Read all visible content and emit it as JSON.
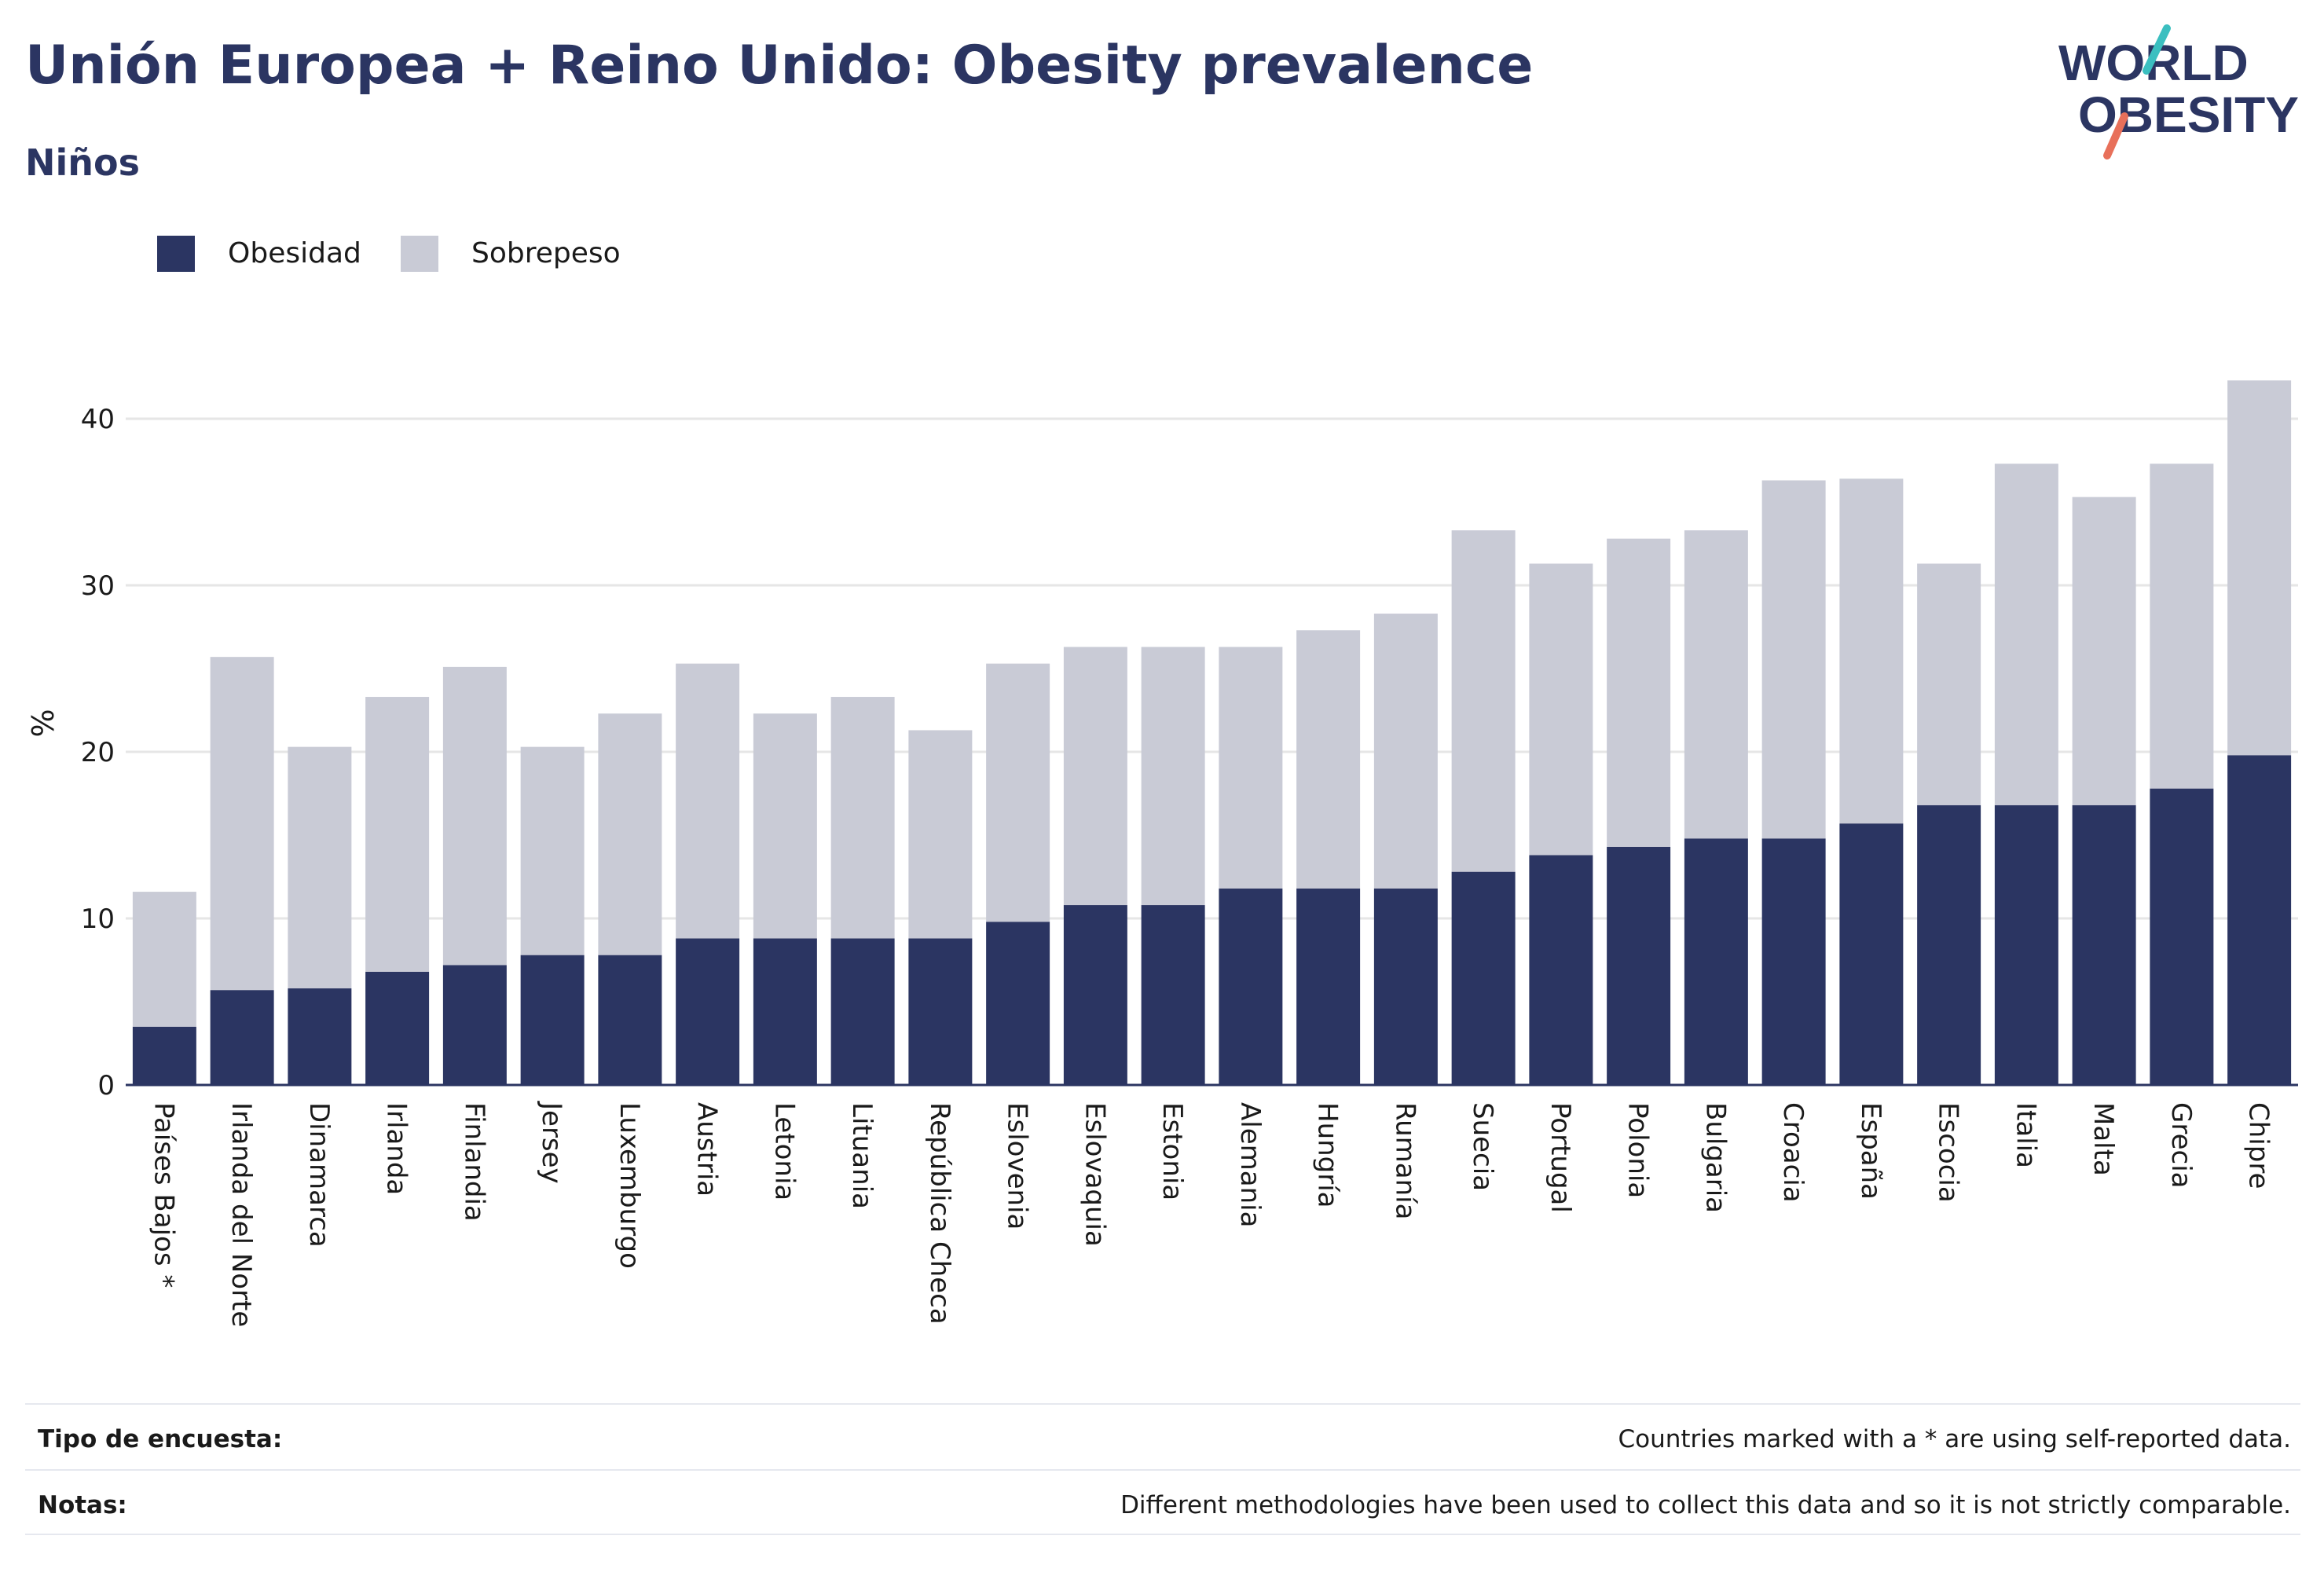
{
  "title": "Unión Europea + Reino Unido: Obesity prevalence",
  "subtitle": "Niños",
  "logo": {
    "line1": "WORLD",
    "line2": "OBESITY",
    "accent_colors": [
      "#3bbfc0",
      "#e8705a"
    ],
    "text_color": "#2b3562"
  },
  "colors": {
    "obesidad": "#2b3562",
    "sobrepeso": "#c9cbd6",
    "title": "#2b3562",
    "grid": "#e6e6e6",
    "axis": "#2b3562"
  },
  "legend": {
    "items": [
      {
        "label": "Obesidad",
        "color": "#2b3562"
      },
      {
        "label": "Sobrepeso",
        "color": "#c9cbd6"
      }
    ]
  },
  "chart_data": {
    "type": "bar",
    "stacked": true,
    "categories": [
      "Países Bajos *",
      "Irlanda del Norte",
      "Dinamarca",
      "Irlanda",
      "Finlandia",
      "Jersey",
      "Luxemburgo",
      "Austria",
      "Letonia",
      "Lituania",
      "República Checa",
      "Eslovenia",
      "Eslovaquia",
      "Estonia",
      "Alemania",
      "Hungría",
      "Rumanía",
      "Suecia",
      "Portugal",
      "Polonia",
      "Bulgaria",
      "Croacia",
      "España",
      "Escocia",
      "Italia",
      "Malta",
      "Grecia",
      "Chipre"
    ],
    "series": [
      {
        "name": "Obesidad",
        "color": "#2b3562",
        "values": [
          3.5,
          5.7,
          5.8,
          6.8,
          7.2,
          7.8,
          7.8,
          8.8,
          8.8,
          8.8,
          8.8,
          9.8,
          10.8,
          10.8,
          11.8,
          11.8,
          11.8,
          12.8,
          13.8,
          14.3,
          14.8,
          14.8,
          15.7,
          16.8,
          16.8,
          16.8,
          17.8,
          19.8
        ]
      },
      {
        "name": "Sobrepeso",
        "color": "#c9cbd6",
        "values": [
          8.1,
          20.0,
          14.5,
          16.5,
          17.9,
          12.5,
          14.5,
          16.5,
          13.5,
          14.5,
          12.5,
          15.5,
          15.5,
          15.5,
          14.5,
          15.5,
          16.5,
          20.5,
          17.5,
          18.5,
          18.5,
          21.5,
          20.7,
          14.5,
          20.5,
          18.5,
          19.5,
          22.5
        ]
      }
    ],
    "ylabel": "%",
    "xlabel": "",
    "ylim": [
      0,
      42.5
    ],
    "yticks": [
      0,
      10,
      20,
      30,
      40
    ],
    "grid": true,
    "legend_position": "top-left"
  },
  "footer": {
    "rows": [
      {
        "key": "Tipo de encuesta:",
        "value": "Countries marked with a * are using self-reported data."
      },
      {
        "key": "Notas:",
        "value": "Different methodologies have been used to collect this data and so it is not strictly comparable."
      }
    ]
  }
}
